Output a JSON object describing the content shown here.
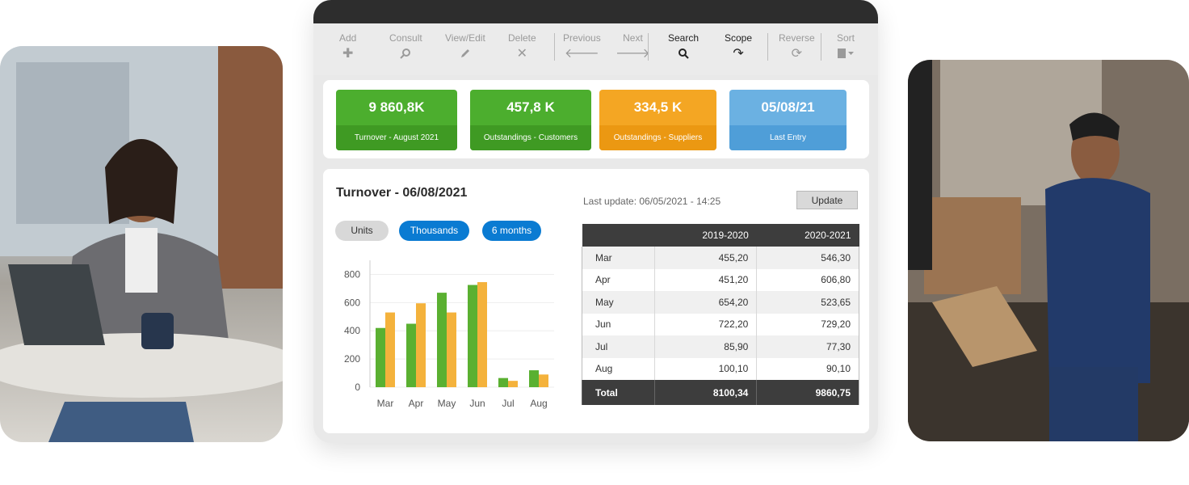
{
  "toolbar": {
    "add": {
      "label": "Add",
      "icon": "plus-icon"
    },
    "consult": {
      "label": "Consult",
      "icon": "search-icon"
    },
    "view_edit": {
      "label": "View/Edit",
      "icon": "pencil-icon"
    },
    "delete": {
      "label": "Delete",
      "icon": "close-icon"
    },
    "previous": {
      "label": "Previous",
      "icon": "arrow-left-icon"
    },
    "next": {
      "label": "Next",
      "icon": "arrow-right-icon"
    },
    "search": {
      "label": "Search",
      "icon": "search-icon"
    },
    "scope": {
      "label": "Scope",
      "icon": "redo-icon"
    },
    "reverse": {
      "label": "Reverse",
      "icon": "refresh-icon"
    },
    "sort": {
      "label": "Sort",
      "icon": "document-sort-icon"
    }
  },
  "kpis": [
    {
      "value": "9 860,8K",
      "label": "Turnover - August 2021",
      "color": "#4cae2e"
    },
    {
      "value": "457,8 K",
      "label": "Outstandings - Customers",
      "color": "#4cae2e"
    },
    {
      "value": "334,5 K",
      "label": "Outstandings - Suppliers",
      "color": "#f4a623"
    },
    {
      "value": "05/08/21",
      "label": "Last Entry",
      "color": "#6bb1e2"
    }
  ],
  "main": {
    "title": "Turnover - 06/08/2021",
    "last_update": "Last update: 06/05/2021 - 14:25",
    "update_label": "Update",
    "filters": {
      "units": "Units",
      "thousands": "Thousands",
      "months": "6 months"
    }
  },
  "chart_data": {
    "type": "bar",
    "categories": [
      "Mar",
      "Apr",
      "May",
      "Jun",
      "Jul",
      "Aug"
    ],
    "series": [
      {
        "values": [
          420,
          450,
          670,
          725,
          65,
          120
        ],
        "color": "#5ab031"
      },
      {
        "values": [
          530,
          595,
          530,
          745,
          45,
          90
        ],
        "color": "#f4b23c"
      }
    ],
    "yticks": [
      0,
      200,
      400,
      600,
      800
    ],
    "ylim": [
      0,
      900
    ]
  },
  "table": {
    "headers": [
      "",
      "2019-2020",
      "2020-2021"
    ],
    "rows": [
      [
        "Mar",
        "455,20",
        "546,30"
      ],
      [
        "Apr",
        "451,20",
        "606,80"
      ],
      [
        "May",
        "654,20",
        "523,65"
      ],
      [
        "Jun",
        "722,20",
        "729,20"
      ],
      [
        "Jul",
        "85,90",
        "77,30"
      ],
      [
        "Aug",
        "100,10",
        "90,10"
      ]
    ],
    "total": [
      "Total",
      "8100,34",
      "9860,75"
    ]
  }
}
